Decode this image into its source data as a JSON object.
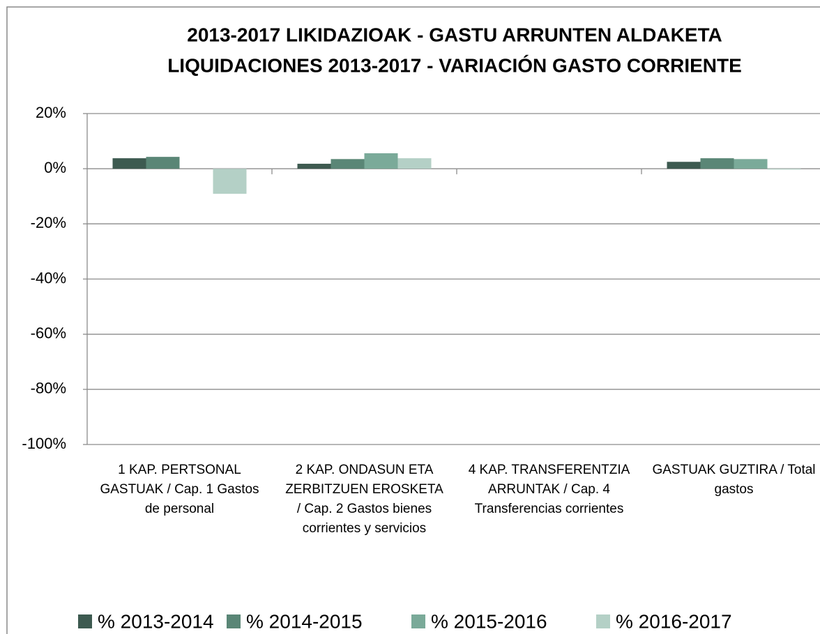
{
  "chart_data": {
    "type": "bar",
    "title": [
      "2013-2017 LIKIDAZIOAK - GASTU ARRUNTEN ALDAKETA",
      "LIQUIDACIONES 2013-2017 - VARIACIÓN GASTO CORRIENTE"
    ],
    "categories": [
      "1 KAP. PERTSONAL GASTUAK / Cap. 1 Gastos de personal",
      "2 KAP. ONDASUN ETA ZERBITZUEN EROSKETA / Cap. 2 Gastos bienes corrientes y servicios",
      "4 KAP. TRANSFERENTZIA ARRUNTAK / Cap. 4 Transferencias corrientes",
      "GASTUAK GUZTIRA / Total gastos"
    ],
    "series": [
      {
        "name": "% 2013-2014",
        "color": "#3d5a50",
        "values": [
          3.8,
          1.8,
          0,
          2.5
        ]
      },
      {
        "name": "% 2014-2015",
        "color": "#5a8676",
        "values": [
          4.3,
          3.5,
          0,
          3.8
        ]
      },
      {
        "name": "% 2015-2016",
        "color": "#7aaa99",
        "values": [
          0,
          5.6,
          0,
          3.5
        ]
      },
      {
        "name": "% 2016-2017",
        "color": "#b4d0c6",
        "values": [
          -9.1,
          3.8,
          0,
          -0.3
        ]
      }
    ],
    "ylim": [
      -100,
      20
    ],
    "yticks": [
      {
        "value": -100,
        "label": "-100%"
      },
      {
        "value": -80,
        "label": "-80%"
      },
      {
        "value": -60,
        "label": "-60%"
      },
      {
        "value": -40,
        "label": "-40%"
      },
      {
        "value": -20,
        "label": "-20%"
      },
      {
        "value": 0,
        "label": "0%"
      },
      {
        "value": 20,
        "label": "20%"
      }
    ],
    "grid": true
  }
}
